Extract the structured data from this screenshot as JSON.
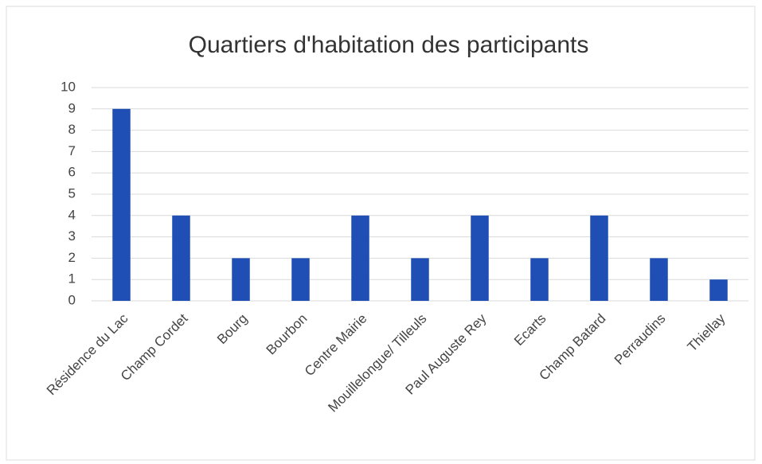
{
  "chart_data": {
    "type": "bar",
    "title": "Quartiers d'habitation des participants",
    "categories": [
      "Résidence du Lac",
      "Champ Cordet",
      "Bourg",
      "Bourbon",
      "Centre Mairie",
      "Mouillelongue/ Tilleuls",
      "Paul Auguste Rey",
      "Ecarts",
      "Champ Batard",
      "Perraudins",
      "Thiellay"
    ],
    "values": [
      9,
      4,
      2,
      2,
      4,
      2,
      4,
      2,
      4,
      2,
      1
    ],
    "color": "#1f4fb4",
    "ylim": [
      0,
      10
    ],
    "yticks": [
      0,
      1,
      2,
      3,
      4,
      5,
      6,
      7,
      8,
      9,
      10
    ],
    "grid": true
  }
}
